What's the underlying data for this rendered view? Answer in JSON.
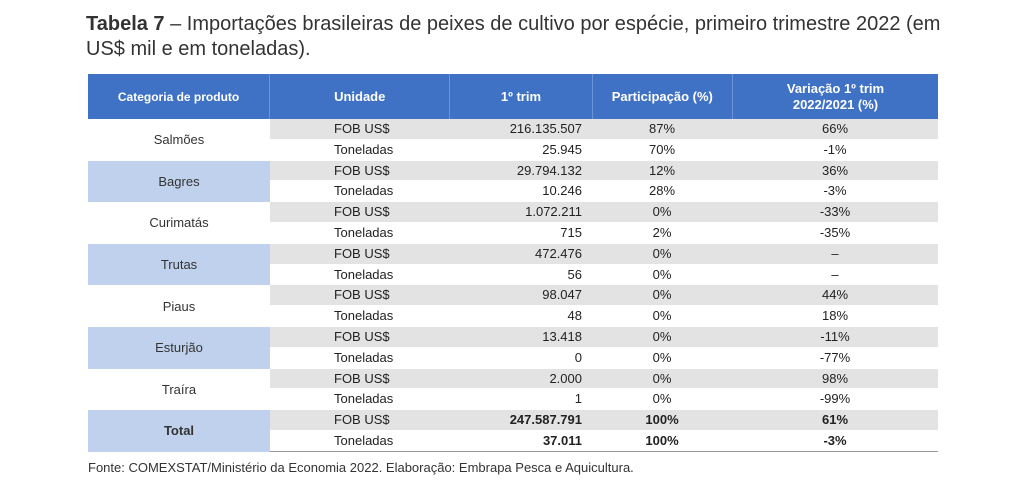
{
  "title": {
    "bold": "Tabela 7",
    "text": " – Importações brasileiras de peixes de cultivo por espécie, primeiro trimestre 2022 (em US$ mil e em toneladas)."
  },
  "headers": {
    "categoria": "Categoria de produto",
    "unidade": "Unidade",
    "trim": "1º trim",
    "participacao": "Participação (%)",
    "variacao": "Variação 1º trim\n2022/2021 (%)"
  },
  "groups": [
    {
      "name": "Salmões",
      "rows": [
        {
          "unit": "FOB US$",
          "value": "216.135.507",
          "share": "87%",
          "change": "66%"
        },
        {
          "unit": "Toneladas",
          "value": "25.945",
          "share": "70%",
          "change": "-1%"
        }
      ]
    },
    {
      "name": "Bagres",
      "rows": [
        {
          "unit": "FOB US$",
          "value": "29.794.132",
          "share": "12%",
          "change": "36%"
        },
        {
          "unit": "Toneladas",
          "value": "10.246",
          "share": "28%",
          "change": "-3%"
        }
      ]
    },
    {
      "name": "Curimatás",
      "rows": [
        {
          "unit": "FOB US$",
          "value": "1.072.211",
          "share": "0%",
          "change": "-33%"
        },
        {
          "unit": "Toneladas",
          "value": "715",
          "share": "2%",
          "change": "-35%"
        }
      ]
    },
    {
      "name": "Trutas",
      "rows": [
        {
          "unit": "FOB US$",
          "value": "472.476",
          "share": "0%",
          "change": "–"
        },
        {
          "unit": "Toneladas",
          "value": "56",
          "share": "0%",
          "change": "–"
        }
      ]
    },
    {
      "name": "Piaus",
      "rows": [
        {
          "unit": "FOB US$",
          "value": "98.047",
          "share": "0%",
          "change": "44%"
        },
        {
          "unit": "Toneladas",
          "value": "48",
          "share": "0%",
          "change": "18%"
        }
      ]
    },
    {
      "name": "Esturjão",
      "rows": [
        {
          "unit": "FOB US$",
          "value": "13.418",
          "share": "0%",
          "change": "-11%"
        },
        {
          "unit": "Toneladas",
          "value": "0",
          "share": "0%",
          "change": "-77%"
        }
      ]
    },
    {
      "name": "Traíra",
      "rows": [
        {
          "unit": "FOB US$",
          "value": "2.000",
          "share": "0%",
          "change": "98%"
        },
        {
          "unit": "Toneladas",
          "value": "1",
          "share": "0%",
          "change": "-99%"
        }
      ]
    },
    {
      "name": "Total",
      "rows": [
        {
          "unit": "FOB US$",
          "value": "247.587.791",
          "share": "100%",
          "change": "61%"
        },
        {
          "unit": "Toneladas",
          "value": "37.011",
          "share": "100%",
          "change": "-3%"
        }
      ]
    }
  ],
  "source": "Fonte: COMEXSTAT/Ministério da Economia 2022. Elaboração: Embrapa Pesca e Aquicultura.",
  "colors": {
    "header_bg": "#3f72c4",
    "category_highlight": "#bfd1ec",
    "row_shade": "#e3e3e3"
  }
}
